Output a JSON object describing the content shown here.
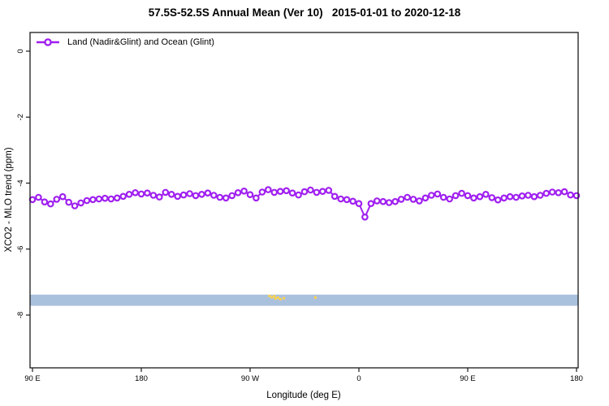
{
  "header": {
    "title": "57.5S-52.5S Annual Mean (Ver 10)   2015-01-01 to 2020-12-18"
  },
  "chart_data": {
    "type": "line",
    "title": "57.5S-52.5S Annual Mean (Ver 10)   2015-01-01 to 2020-12-18",
    "xlabel": "Longitude (deg E)",
    "ylabel": "XCO2 - MLO trend (ppm)",
    "xlim": [
      90,
      540
    ],
    "ylim": [
      -9.6,
      0.6
    ],
    "grid": false,
    "legend_position": "top-left",
    "x_ticks": [
      {
        "value": 90,
        "label": "90 E"
      },
      {
        "value": 180,
        "label": "180"
      },
      {
        "value": 270,
        "label": "90 W"
      },
      {
        "value": 360,
        "label": "0"
      },
      {
        "value": 450,
        "label": "90 E"
      },
      {
        "value": 540,
        "label": "180"
      }
    ],
    "y_ticks": [
      {
        "value": 0,
        "label": "0"
      },
      {
        "value": -2,
        "label": "-2"
      },
      {
        "value": -4,
        "label": "-4"
      },
      {
        "value": -6,
        "label": "-6"
      },
      {
        "value": -8,
        "label": "-8"
      }
    ],
    "series": [
      {
        "name": "Land (Nadir&Glint) and Ocean (Glint)",
        "color": "#A020F0",
        "marker": "open-circle",
        "x": [
          90,
          95,
          100,
          105,
          110,
          115,
          120,
          125,
          130,
          135,
          140,
          145,
          150,
          155,
          160,
          165,
          170,
          175,
          180,
          185,
          190,
          195,
          200,
          205,
          210,
          215,
          220,
          225,
          230,
          235,
          240,
          245,
          250,
          255,
          260,
          265,
          270,
          275,
          280,
          285,
          290,
          295,
          300,
          305,
          310,
          315,
          320,
          325,
          330,
          335,
          340,
          345,
          350,
          355,
          360,
          365,
          370,
          375,
          380,
          385,
          390,
          395,
          400,
          405,
          410,
          415,
          420,
          425,
          430,
          435,
          440,
          445,
          450,
          455,
          460,
          465,
          470,
          475,
          480,
          485,
          490,
          495,
          500,
          505,
          510,
          515,
          520,
          525,
          530,
          535,
          540
        ],
        "values": [
          -4.5,
          -4.43,
          -4.57,
          -4.63,
          -4.49,
          -4.41,
          -4.58,
          -4.69,
          -4.6,
          -4.53,
          -4.5,
          -4.48,
          -4.46,
          -4.48,
          -4.45,
          -4.4,
          -4.34,
          -4.29,
          -4.33,
          -4.3,
          -4.37,
          -4.42,
          -4.28,
          -4.34,
          -4.4,
          -4.36,
          -4.32,
          -4.38,
          -4.34,
          -4.3,
          -4.37,
          -4.43,
          -4.45,
          -4.38,
          -4.29,
          -4.24,
          -4.35,
          -4.45,
          -4.27,
          -4.2,
          -4.28,
          -4.25,
          -4.23,
          -4.3,
          -4.36,
          -4.26,
          -4.21,
          -4.28,
          -4.25,
          -4.22,
          -4.4,
          -4.48,
          -4.5,
          -4.55,
          -4.62,
          -5.03,
          -4.62,
          -4.54,
          -4.56,
          -4.59,
          -4.56,
          -4.49,
          -4.43,
          -4.49,
          -4.54,
          -4.45,
          -4.37,
          -4.33,
          -4.43,
          -4.48,
          -4.38,
          -4.31,
          -4.38,
          -4.45,
          -4.41,
          -4.34,
          -4.44,
          -4.51,
          -4.45,
          -4.41,
          -4.43,
          -4.39,
          -4.37,
          -4.41,
          -4.37,
          -4.31,
          -4.27,
          -4.29,
          -4.26,
          -4.36,
          -4.38
        ]
      }
    ],
    "band": {
      "name": "horizontal-highlight-band",
      "color": "#AAC1DD",
      "y_top": -7.38,
      "y_bottom": -7.72,
      "x_from": 90,
      "x_to": 540
    },
    "scatter_marks": {
      "name": "small-yellow-marks",
      "color": "#FBD24D",
      "points": [
        {
          "x": 286,
          "y": -7.42
        },
        {
          "x": 288,
          "y": -7.46
        },
        {
          "x": 290,
          "y": -7.43
        },
        {
          "x": 291,
          "y": -7.5
        },
        {
          "x": 293,
          "y": -7.47
        },
        {
          "x": 295,
          "y": -7.52
        },
        {
          "x": 298,
          "y": -7.49
        },
        {
          "x": 324,
          "y": -7.47
        }
      ]
    }
  }
}
